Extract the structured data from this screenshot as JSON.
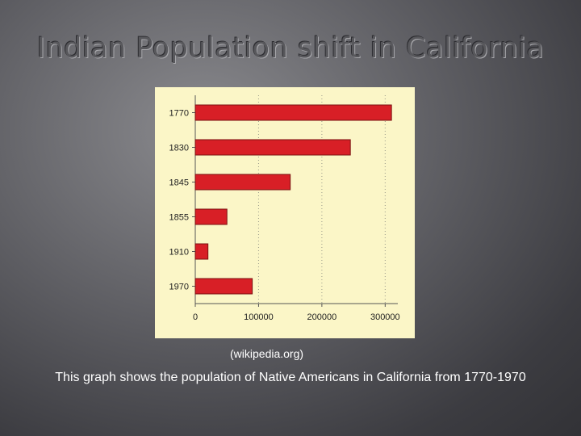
{
  "slide": {
    "title": "Indian Population shift in California",
    "source": "(wikipedia.org)",
    "caption": "This graph shows the population of Native Americans in California from 1770-1970"
  },
  "colors": {
    "bar": "#d81f26",
    "panel": "#fbf6c7"
  },
  "chart_data": {
    "type": "bar",
    "orientation": "horizontal",
    "categories": [
      "1770",
      "1830",
      "1845",
      "1855",
      "1910",
      "1970"
    ],
    "values": [
      310000,
      245000,
      150000,
      50000,
      20000,
      90000
    ],
    "xlim": [
      0,
      320000
    ],
    "xticks": [
      0,
      100000,
      200000,
      300000
    ],
    "xtick_labels": [
      "0",
      "100000",
      "200000",
      "300000"
    ],
    "title": "",
    "xlabel": "",
    "ylabel": "",
    "grid": "vertical dotted"
  }
}
